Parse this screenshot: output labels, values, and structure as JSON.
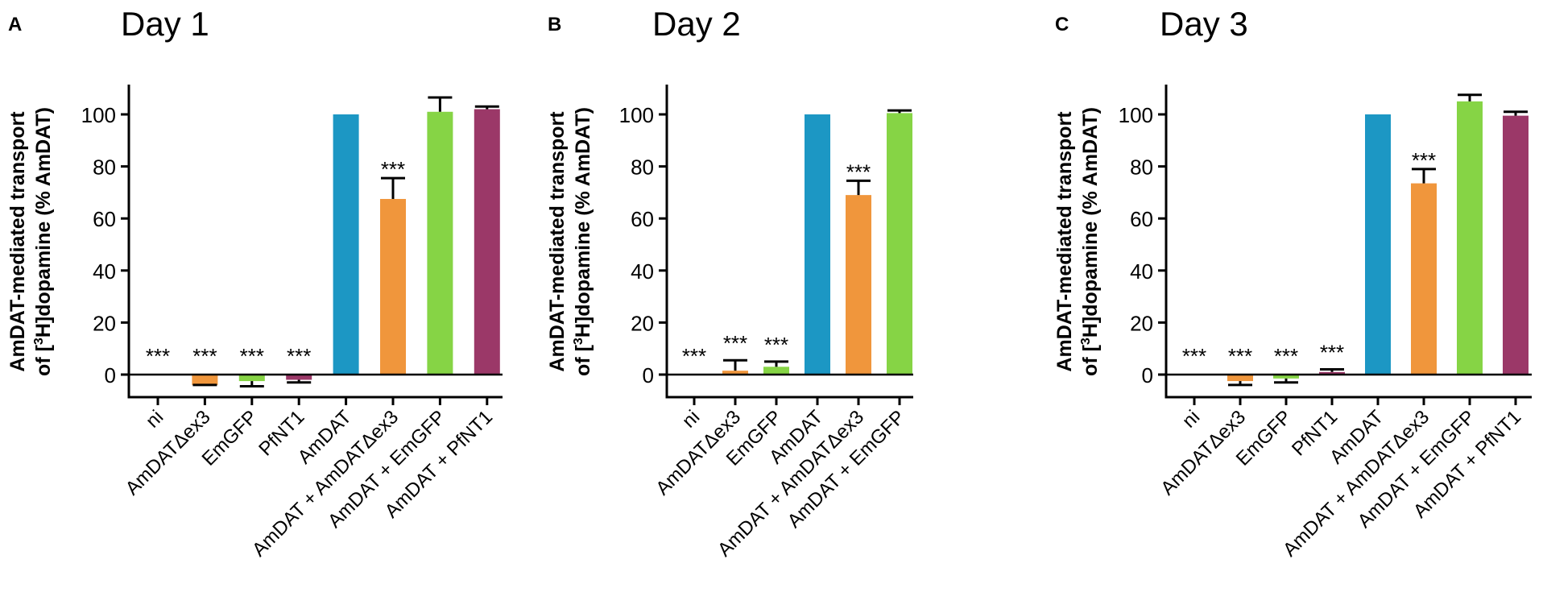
{
  "chart_data": [
    {
      "type": "bar",
      "panel": "A",
      "title": "Day 1",
      "ylabel_line1": "AmDAT-mediated transport",
      "ylabel_line2_pre": "of [",
      "ylabel_line2_sup": "3",
      "ylabel_line2_post": "H]dopamine (% AmDAT)",
      "xlabel": "",
      "ylim": [
        -8.7,
        110
      ],
      "yticks": [
        0,
        20,
        40,
        60,
        80,
        100
      ],
      "grid": false,
      "categories": [
        "ni",
        "AmDATΔex3",
        "EmGFP",
        "PfNT1",
        "AmDAT",
        "AmDAT + AmDATΔex3",
        "AmDAT + EmGFP",
        "AmDAT + PfNT1"
      ],
      "values": [
        0,
        -4,
        -2.5,
        -2,
        100,
        67.5,
        101,
        102
      ],
      "error_tips": [
        null,
        -4,
        -4.5,
        -3,
        null,
        75.5,
        106.5,
        103
      ],
      "significance": [
        "***",
        "***",
        "***",
        "***",
        "",
        "***",
        "",
        ""
      ],
      "colors": [
        "#f0963c",
        "#f0963c",
        "#86d445",
        "#9b3868",
        "#1c97c4",
        "#f0963c",
        "#86d445",
        "#9b3868"
      ]
    },
    {
      "type": "bar",
      "panel": "B",
      "title": "Day 2",
      "ylabel_line1": "AmDAT-mediated transport",
      "ylabel_line2_pre": "of [",
      "ylabel_line2_sup": "3",
      "ylabel_line2_post": "H]dopamine (% AmDAT)",
      "xlabel": "",
      "ylim": [
        -8.7,
        110
      ],
      "yticks": [
        0,
        20,
        40,
        60,
        80,
        100
      ],
      "grid": false,
      "categories": [
        "ni",
        "AmDATΔex3",
        "EmGFP",
        "AmDAT",
        "AmDAT + AmDATΔex3",
        "AmDAT + EmGFP"
      ],
      "values": [
        0,
        1.5,
        3,
        100,
        69,
        100.5
      ],
      "error_tips": [
        null,
        5.5,
        5,
        null,
        74.5,
        101.5
      ],
      "significance": [
        "***",
        "***",
        "***",
        "",
        "***",
        ""
      ],
      "colors": [
        "#f0963c",
        "#f0963c",
        "#86d445",
        "#1c97c4",
        "#f0963c",
        "#86d445"
      ]
    },
    {
      "type": "bar",
      "panel": "C",
      "title": "Day 3",
      "ylabel_line1": "AmDAT-mediated transport",
      "ylabel_line2_pre": "of [",
      "ylabel_line2_sup": "3",
      "ylabel_line2_post": "H]dopamine (% AmDAT)",
      "xlabel": "",
      "ylim": [
        -8.7,
        110
      ],
      "yticks": [
        0,
        20,
        40,
        60,
        80,
        100
      ],
      "grid": false,
      "categories": [
        "ni",
        "AmDATΔex3",
        "EmGFP",
        "PfNT1",
        "AmDAT",
        "AmDAT + AmDATΔex3",
        "AmDAT + EmGFP",
        "AmDAT + PfNT1"
      ],
      "values": [
        0,
        -2.5,
        -1.5,
        1,
        100,
        73.5,
        105,
        99.5
      ],
      "error_tips": [
        null,
        -4,
        -3,
        2,
        null,
        79,
        107.5,
        101
      ],
      "significance": [
        "***",
        "***",
        "***",
        "***",
        "",
        "***",
        "",
        ""
      ],
      "colors": [
        "#f0963c",
        "#f0963c",
        "#86d445",
        "#9b3868",
        "#1c97c4",
        "#f0963c",
        "#86d445",
        "#9b3868"
      ]
    }
  ]
}
